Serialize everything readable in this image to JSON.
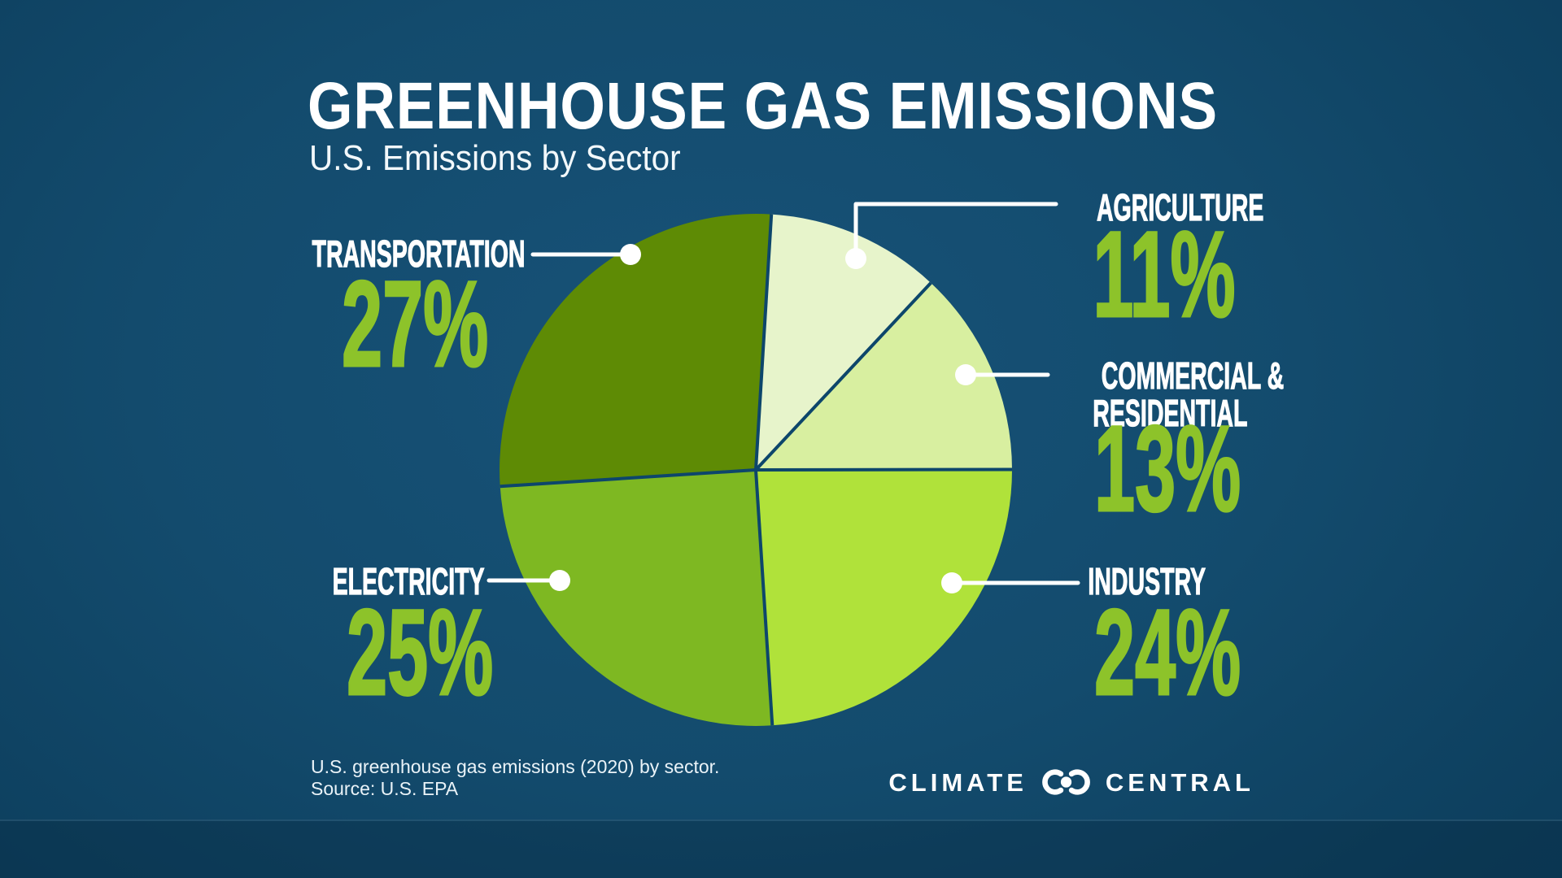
{
  "title": "GREENHOUSE GAS EMISSIONS",
  "subtitle": "U.S. Emissions by Sector",
  "footer": {
    "line1": "U.S. greenhouse gas emissions (2020) by sector.",
    "line2": "Source: U.S. EPA"
  },
  "logo": {
    "left": "CLIMATE",
    "right": "CENTRAL"
  },
  "colors": {
    "background": "#134b6d",
    "accent_green": "#8dc32a",
    "divider": "#0d466b",
    "callout_white": "#ffffff",
    "label_white": "#ffffff"
  },
  "chart_data": {
    "type": "pie",
    "title": "U.S. Emissions by Sector",
    "direction": "clockwise",
    "start_angle_deg": 3.5,
    "legend_position": "callout-labels",
    "sectors": [
      {
        "label": "AGRICULTURE",
        "value": 11,
        "pct_label": "11%",
        "color": "#e7f4cb"
      },
      {
        "label": "COMMERCIAL & RESIDENTIAL",
        "label_lines": [
          "COMMERCIAL &",
          "RESIDENTIAL"
        ],
        "value": 13,
        "pct_label": "13%",
        "color": "#d8efa0"
      },
      {
        "label": "INDUSTRY",
        "value": 24,
        "pct_label": "24%",
        "color": "#b0e23a"
      },
      {
        "label": "ELECTRICITY",
        "value": 25,
        "pct_label": "25%",
        "color": "#7eb822"
      },
      {
        "label": "TRANSPORTATION",
        "value": 27,
        "pct_label": "27%",
        "color": "#5e8b05"
      }
    ]
  }
}
